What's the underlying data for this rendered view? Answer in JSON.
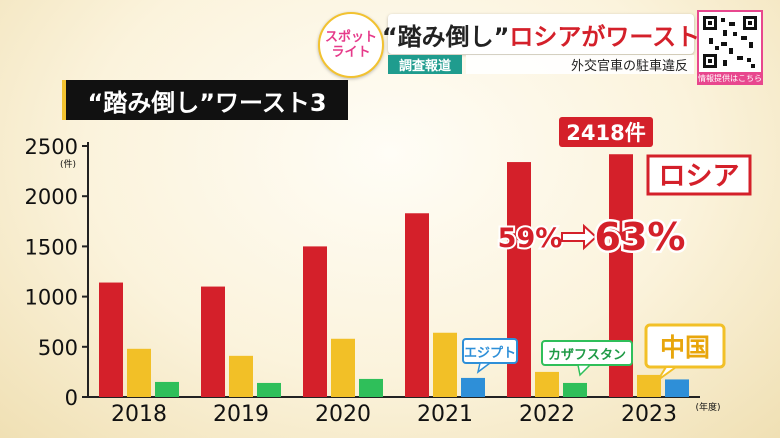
{
  "header": {
    "logo_line1": "スポット",
    "logo_line2": "ライト",
    "headline_prefix": "“踏み倒し”",
    "headline_main": "ロシアがワースト",
    "tag": "調査報道",
    "subtitle": "外交官車の駐車違反",
    "qr_label": "情報提供はこちら",
    "qr_icon": "qr-code-icon"
  },
  "chart_data": {
    "type": "bar",
    "title": "“踏み倒し”ワースト3",
    "ylabel": "(件)",
    "xlabel": "(年度)",
    "categories": [
      "2018",
      "2019",
      "2020",
      "2021",
      "2022",
      "2023"
    ],
    "ylim": [
      0,
      2500
    ],
    "yticks": [
      0,
      500,
      1000,
      1500,
      2000,
      2500
    ],
    "series": [
      {
        "name": "ロシア",
        "color": "#d4202a",
        "values": [
          1140,
          1100,
          1500,
          1830,
          2340,
          2418
        ]
      },
      {
        "name": "中国",
        "color": "#f2c027",
        "values": [
          480,
          410,
          580,
          640,
          250,
          220
        ]
      },
      {
        "name_by_year": [
          "",
          "",
          "",
          "エジプト",
          "カザフスタン",
          ""
        ],
        "color_by_year": [
          "#2fbf5a",
          "#2fbf5a",
          "#2fbf5a",
          "#2e8fd8",
          "#2fbf5a",
          "#2e8fd8"
        ],
        "values": [
          150,
          140,
          180,
          190,
          140,
          175
        ]
      }
    ],
    "annotations": {
      "russia_2023_value": "2418件",
      "russia_label": "ロシア",
      "share_from": "59%",
      "share_to": "63%",
      "china_label": "中国",
      "egypt_label": "エジプト",
      "kazakhstan_label": "カザフスタン"
    },
    "grid": false,
    "colors": {
      "russia": "#d4202a",
      "china": "#f2c027",
      "kazakhstan": "#2fbf5a",
      "egypt": "#2e8fd8"
    }
  }
}
